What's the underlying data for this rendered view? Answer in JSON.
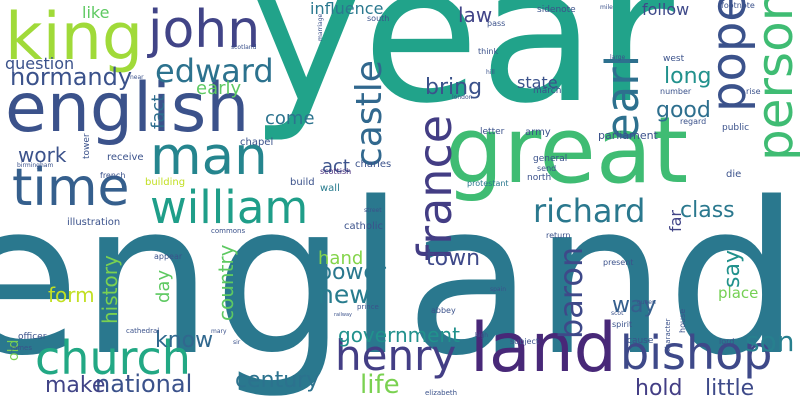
{
  "words": [
    {
      "text": "year",
      "color": "#21a38a"
    },
    {
      "text": "england",
      "color": "#2a788e"
    },
    {
      "text": "great",
      "color": "#3fbc73"
    },
    {
      "text": "english",
      "color": "#3b528b"
    },
    {
      "text": "land",
      "color": "#482878"
    },
    {
      "text": "king",
      "color": "#a0da39"
    },
    {
      "text": "time",
      "color": "#355f8d"
    },
    {
      "text": "william",
      "color": "#1f9e89"
    },
    {
      "text": "john",
      "color": "#414487"
    },
    {
      "text": "man",
      "color": "#25858e"
    },
    {
      "text": "church",
      "color": "#22a884"
    },
    {
      "text": "henry",
      "color": "#433e85"
    },
    {
      "text": "bishop",
      "color": "#3e4989"
    },
    {
      "text": "pope",
      "color": "#3b528b"
    },
    {
      "text": "person",
      "color": "#3fbc73"
    },
    {
      "text": "france",
      "color": "#433d84"
    },
    {
      "text": "earl",
      "color": "#2d708e"
    },
    {
      "text": "edward",
      "color": "#2c728e"
    },
    {
      "text": "castle",
      "color": "#31688e"
    },
    {
      "text": "richard",
      "color": "#2a788e"
    },
    {
      "text": "normandy",
      "color": "#3b528b"
    },
    {
      "text": "baron",
      "color": "#3e4989"
    },
    {
      "text": "government",
      "color": "#21918c"
    },
    {
      "text": "son",
      "color": "#277f8e"
    },
    {
      "text": "century",
      "color": "#2c728e"
    },
    {
      "text": "national",
      "color": "#3b528b"
    },
    {
      "text": "make",
      "color": "#414487"
    },
    {
      "text": "hold",
      "color": "#433e85"
    },
    {
      "text": "little",
      "color": "#3e4a89"
    },
    {
      "text": "life",
      "color": "#7ad151"
    },
    {
      "text": "town",
      "color": "#3e4989"
    },
    {
      "text": "power",
      "color": "#2a788e"
    },
    {
      "text": "new",
      "color": "#287c8e"
    },
    {
      "text": "country",
      "color": "#5ec962"
    },
    {
      "text": "history",
      "color": "#7ad151"
    },
    {
      "text": "form",
      "color": "#c2df23"
    },
    {
      "text": "know",
      "color": "#31688e"
    },
    {
      "text": "class",
      "color": "#2a788e"
    },
    {
      "text": "bring",
      "color": "#3b528b"
    },
    {
      "text": "long",
      "color": "#21918c"
    },
    {
      "text": "good",
      "color": "#2e6f8e"
    },
    {
      "text": "way",
      "color": "#355f8d"
    },
    {
      "text": "say",
      "color": "#21918c"
    },
    {
      "text": "place",
      "color": "#75d054"
    },
    {
      "text": "hand",
      "color": "#84d44b"
    },
    {
      "text": "day",
      "color": "#5ec962"
    },
    {
      "text": "act",
      "color": "#3b528b"
    },
    {
      "text": "work",
      "color": "#3b528b"
    },
    {
      "text": "fact",
      "color": "#2e6d8e"
    },
    {
      "text": "early",
      "color": "#5ec962"
    },
    {
      "text": "question",
      "color": "#3b528b"
    },
    {
      "text": "like",
      "color": "#5ec962"
    },
    {
      "text": "come",
      "color": "#2c738e"
    },
    {
      "text": "influence",
      "color": "#2a788e"
    },
    {
      "text": "law",
      "color": "#414487"
    },
    {
      "text": "state",
      "color": "#3b528b"
    },
    {
      "text": "follow",
      "color": "#3e4989"
    },
    {
      "text": "far",
      "color": "#414487"
    },
    {
      "text": "old",
      "color": "#7ad151"
    },
    {
      "text": "parliament",
      "color": "#3b528b"
    },
    {
      "text": "charles",
      "color": "#3b528b"
    },
    {
      "text": "wall",
      "color": "#287c8e"
    },
    {
      "text": "scottish",
      "color": "#472d7b"
    },
    {
      "text": "build",
      "color": "#3b528b"
    },
    {
      "text": "building",
      "color": "#c2df23"
    },
    {
      "text": "french",
      "color": "#3b528b"
    },
    {
      "text": "receive",
      "color": "#3b528b"
    },
    {
      "text": "tower",
      "color": "#3b528b"
    },
    {
      "text": "chapel",
      "color": "#3b528b"
    },
    {
      "text": "illustration",
      "color": "#3b528b"
    },
    {
      "text": "catholic",
      "color": "#3b528b"
    },
    {
      "text": "general",
      "color": "#3b528b"
    },
    {
      "text": "protestant",
      "color": "#2a788e"
    },
    {
      "text": "north",
      "color": "#3b528b"
    },
    {
      "text": "send",
      "color": "#3b528b"
    },
    {
      "text": "letter",
      "color": "#3b528b"
    },
    {
      "text": "army",
      "color": "#3b528b"
    },
    {
      "text": "die",
      "color": "#3b528b"
    },
    {
      "text": "public",
      "color": "#3b528b"
    },
    {
      "text": "regard",
      "color": "#3b528b"
    },
    {
      "text": "number",
      "color": "#3b528b"
    },
    {
      "text": "march",
      "color": "#3b528b"
    },
    {
      "text": "west",
      "color": "#3b528b"
    },
    {
      "text": "rise",
      "color": "#3b528b"
    },
    {
      "text": "large",
      "color": "#3b528b"
    },
    {
      "text": "footnote",
      "color": "#3b528b"
    },
    {
      "text": "mile",
      "color": "#3b528b"
    },
    {
      "text": "sidenote",
      "color": "#3b528b"
    },
    {
      "text": "pass",
      "color": "#3b528b"
    },
    {
      "text": "south",
      "color": "#3b528b"
    },
    {
      "text": "marriage",
      "color": "#3b528b"
    },
    {
      "text": "scotland",
      "color": "#3b528b"
    },
    {
      "text": "think",
      "color": "#3b528b"
    },
    {
      "text": "hill",
      "color": "#3b528b"
    },
    {
      "text": "london",
      "color": "#3b528b"
    },
    {
      "text": "near",
      "color": "#3b528b"
    },
    {
      "text": "birmingham",
      "color": "#3b528b"
    },
    {
      "text": "commons",
      "color": "#3b528b"
    },
    {
      "text": "street",
      "color": "#3b528b"
    },
    {
      "text": "appear",
      "color": "#3b528b"
    },
    {
      "text": "abbey",
      "color": "#3b528b"
    },
    {
      "text": "spain",
      "color": "#3b528b"
    },
    {
      "text": "return",
      "color": "#3b528b"
    },
    {
      "text": "present",
      "color": "#3b528b"
    },
    {
      "text": "house",
      "color": "#3b528b"
    },
    {
      "text": "queen",
      "color": "#3b528b"
    },
    {
      "text": "scot",
      "color": "#3b528b"
    },
    {
      "text": "spirit",
      "color": "#3b528b"
    },
    {
      "text": "character",
      "color": "#3b528b"
    },
    {
      "text": "cause",
      "color": "#3b528b"
    },
    {
      "text": "lord",
      "color": "#3b528b"
    },
    {
      "text": "subject",
      "color": "#3b528b"
    },
    {
      "text": "high",
      "color": "#3b528b"
    },
    {
      "text": "prince",
      "color": "#3b528b"
    },
    {
      "text": "railway",
      "color": "#3b528b"
    },
    {
      "text": "mary",
      "color": "#3b528b"
    },
    {
      "text": "sir",
      "color": "#3b528b"
    },
    {
      "text": "cathedral",
      "color": "#3b528b"
    },
    {
      "text": "officer",
      "color": "#3b528b"
    },
    {
      "text": "james",
      "color": "#3b528b"
    },
    {
      "text": "elizabeth",
      "color": "#3b528b"
    }
  ]
}
